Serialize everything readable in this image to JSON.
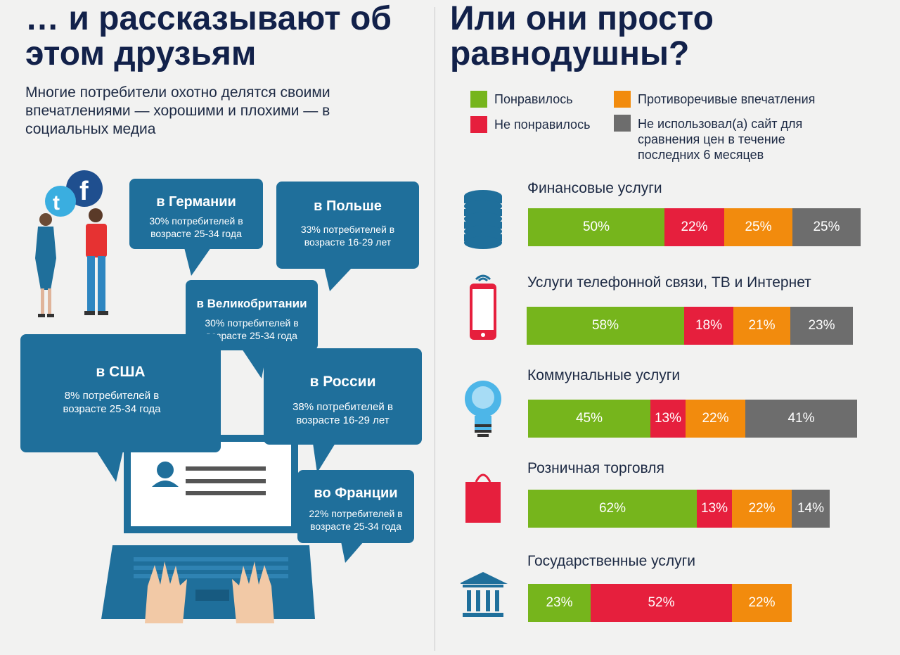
{
  "left": {
    "title_line1": "… и рассказывают об",
    "title_line2": "этом друзьям",
    "lead_line1": "Многие потребители охотно делятся своими",
    "lead_line2": "впечатлениями — хорошими и плохими — в",
    "lead_line3": "социальных медиа",
    "bubbles": [
      {
        "name": "в Германии",
        "line1": "30% потребителей в",
        "line2": "возрасте 25-34 года"
      },
      {
        "name": "в Польше",
        "line1": "33% потребителей в",
        "line2": "возрасте 16-29 лет"
      },
      {
        "name": "в Великобритании",
        "line1": "30% потребителей в",
        "line2": "возрасте 25-34 года"
      },
      {
        "name": "в США",
        "line1": "8% потребителей в",
        "line2": "возрасте 25-34 года"
      },
      {
        "name": "в России",
        "line1": "38% потребителей в",
        "line2": "возрасте 16-29 лет"
      },
      {
        "name": "во Франции",
        "line1": "22% потребителей в",
        "line2": "возрасте 25-34 года"
      }
    ],
    "icons": [
      "twitter-icon",
      "facebook-icon",
      "woman-icon",
      "man-icon",
      "laptop-icon",
      "user-profile-icon",
      "hands-icon"
    ]
  },
  "right": {
    "title_line1": "Или они просто",
    "title_line2": "равнодушны?",
    "legend": {
      "liked": "Понравилось",
      "mixed": "Противоречивые впечатления",
      "disliked": "Не понравилось",
      "notused_line1": "Не использовал(а) сайт для",
      "notused_line2": "сравнения цен в течение",
      "notused_line3": "последних 6 месяцев"
    },
    "colors": {
      "liked": "#76b51c",
      "disliked": "#e61f3d",
      "mixed": "#f28b0d",
      "notused": "#6d6d6d",
      "bubble": "#1f6f9b",
      "icon": "#1f6f9b"
    }
  },
  "chart_data": {
    "type": "bar",
    "orientation": "horizontal-stacked",
    "categories": [
      "Финансовые услуги",
      "Услуги телефонной связи, ТВ и Интернет",
      "Коммунальные услуги",
      "Розничная торговля",
      "Государственные услуги"
    ],
    "category_icons": [
      "coins-icon",
      "phone-icon",
      "lightbulb-icon",
      "shopping-bag-icon",
      "bank-icon"
    ],
    "series": [
      {
        "name": "Понравилось",
        "values": [
          50,
          58,
          45,
          62,
          23
        ],
        "labels": [
          "50%",
          "58%",
          "45%",
          "62%",
          "23%"
        ]
      },
      {
        "name": "Не понравилось",
        "values": [
          22,
          18,
          13,
          13,
          52
        ],
        "labels": [
          "22%",
          "18%",
          "13%",
          "13%",
          "52%"
        ]
      },
      {
        "name": "Противоречивые впечатления",
        "values": [
          25,
          21,
          22,
          22,
          22
        ],
        "labels": [
          "25%",
          "21%",
          "22%",
          "22%",
          "22%"
        ]
      },
      {
        "name": "Не использовал(а) сайт для сравнения цен в течение последних 6 месяцев",
        "values": [
          25,
          23,
          41,
          14,
          null
        ],
        "labels": [
          "25%",
          "23%",
          "41%",
          "14%",
          ""
        ]
      }
    ]
  }
}
